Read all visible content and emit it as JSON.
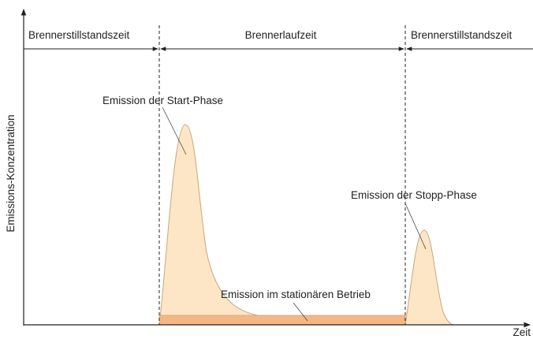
{
  "phases": {
    "left": "Brennerstillstandszeit",
    "middle": "Brennerlaufzeit",
    "right": "Brennerstillstandszeit"
  },
  "axes": {
    "y_label": "Emissions-Konzentration",
    "x_label": "Zeit"
  },
  "annotations": {
    "start": "Emission der Start-Phase",
    "stop": "Emission der Stopp-Phase",
    "steady": "Emission im stationären Betrieb"
  }
}
